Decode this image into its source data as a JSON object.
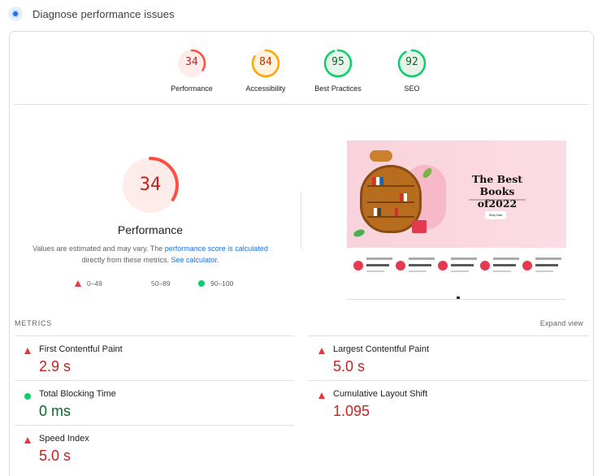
{
  "header": {
    "title": "Diagnose performance issues",
    "icon": "lighthouse-icon"
  },
  "gauges": [
    {
      "name": "Performance",
      "score": "34",
      "value": 34,
      "color": "#ff4e42",
      "bg": "#fdecea",
      "text_color": "#c5221f"
    },
    {
      "name": "Accessibility",
      "score": "84",
      "value": 84,
      "color": "#ffa400",
      "bg": "#fff3e0",
      "text_color": "#c33300"
    },
    {
      "name": "Best Practices",
      "score": "95",
      "value": 95,
      "color": "#0cce6b",
      "bg": "#e6f4ea",
      "text_color": "#0d652d"
    },
    {
      "name": "SEO",
      "score": "92",
      "value": 92,
      "color": "#0cce6b",
      "bg": "#e6f4ea",
      "text_color": "#0d652d"
    }
  ],
  "main_score": {
    "score": "34",
    "value": 34,
    "label": "Performance",
    "desc_prefix": "Values are estimated and may vary. The ",
    "desc_link1": "performance score is calculated",
    "desc_mid": " directly from these metrics. ",
    "desc_link2": "See calculator."
  },
  "legend": [
    {
      "icon": "fail-triangle-icon",
      "range": "0–49"
    },
    {
      "icon": "average-square-icon",
      "range": "50–89"
    },
    {
      "icon": "pass-circle-icon",
      "range": "90–100"
    }
  ],
  "screenshot": {
    "headline": "The Best Books of2022",
    "button": "Shop Now"
  },
  "metrics": {
    "title": "METRICS",
    "expand_label": "Expand view",
    "items": [
      {
        "label": "First Contentful Paint",
        "value": "2.9 s",
        "status": "fail"
      },
      {
        "label": "Largest Contentful Paint",
        "value": "5.0 s",
        "status": "fail"
      },
      {
        "label": "Total Blocking Time",
        "value": "0 ms",
        "status": "pass"
      },
      {
        "label": "Cumulative Layout Shift",
        "value": "1.095",
        "status": "fail"
      },
      {
        "label": "Speed Index",
        "value": "5.0 s",
        "status": "fail"
      }
    ]
  }
}
